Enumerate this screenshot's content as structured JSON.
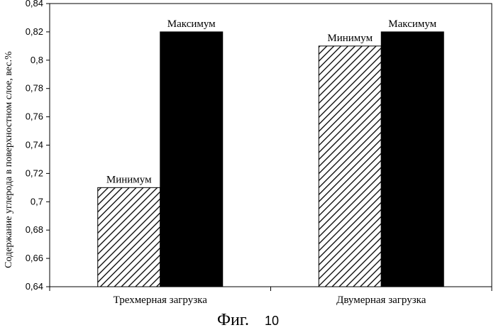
{
  "chart_data": {
    "type": "bar",
    "categories": [
      "Трехмерная загрузка",
      "Двумерная загрузка"
    ],
    "series": [
      {
        "name": "Минимум",
        "values": [
          0.71,
          0.81
        ],
        "pattern": "diagonal-hatch"
      },
      {
        "name": "Максимум",
        "values": [
          0.82,
          0.82
        ],
        "pattern": "solid-black"
      }
    ],
    "ylabel": "Содержание углерода в поверхностном слое, вес.%",
    "xlabel": "",
    "ylim": [
      0.64,
      0.84
    ],
    "yticks": [
      "0,64",
      "0,66",
      "0,68",
      "0,7",
      "0,72",
      "0,74",
      "0,76",
      "0,78",
      "0,8",
      "0,82",
      "0,84"
    ],
    "grid": false,
    "legend": "none",
    "colors": {
      "solid": "#000000",
      "hatch": "#000000",
      "background": "#ffffff"
    }
  },
  "caption": {
    "main": "Фиг.",
    "number": "10"
  }
}
